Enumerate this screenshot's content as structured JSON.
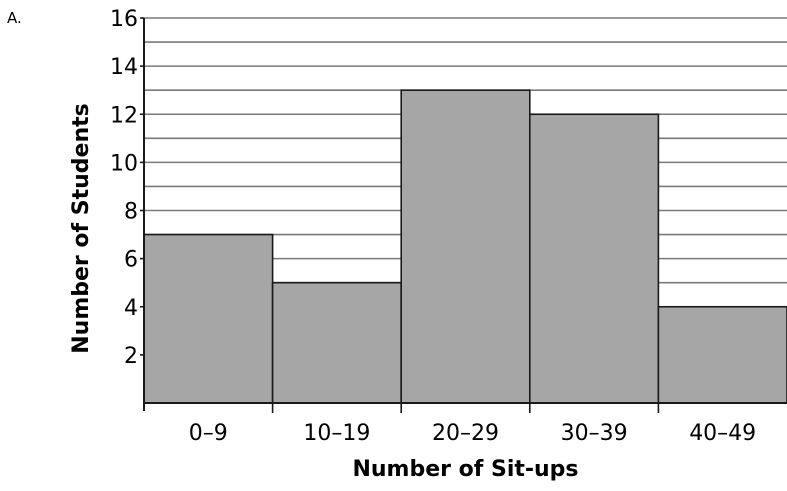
{
  "option_label": "A.",
  "chart_data": {
    "type": "bar",
    "histogram": true,
    "categories": [
      "0–9",
      "10–19",
      "20–29",
      "30–39",
      "40–49"
    ],
    "values": [
      7,
      5,
      13,
      12,
      4
    ],
    "title": "",
    "xlabel": "Number of Sit-ups",
    "ylabel": "Number of Students",
    "ylim": [
      0,
      16
    ],
    "y_tick_labels": [
      "2",
      "4",
      "6",
      "8",
      "10",
      "12",
      "14",
      "16"
    ],
    "y_gridline_step": 1,
    "grid": true,
    "colors": {
      "bar_fill": "#a6a6a6",
      "bar_stroke": "#1a1a1a",
      "grid": "#7a7a7a",
      "axis": "#1a1a1a"
    }
  }
}
